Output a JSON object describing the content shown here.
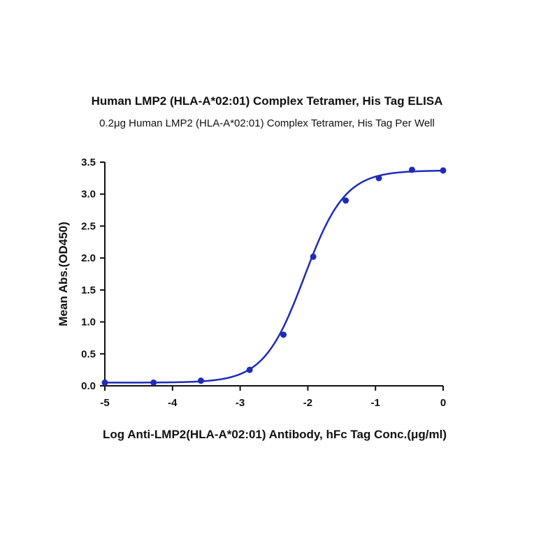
{
  "chart_data": {
    "type": "scatter",
    "title": "Human LMP2 (HLA-A*02:01) Complex Tetramer, His Tag ELISA",
    "subtitle": "0.2μg Human LMP2 (HLA-A*02:01) Complex Tetramer, His Tag Per Well",
    "xlabel": "Log Anti-LMP2(HLA-A*02:01) Antibody, hFc Tag Conc.(μg/ml)",
    "ylabel": "Mean Abs.(OD450)",
    "xlim": [
      -5,
      0
    ],
    "ylim": [
      0,
      3.5
    ],
    "xticks": [
      "-5",
      "-4",
      "-3",
      "-2",
      "-1",
      "0"
    ],
    "yticks": [
      "0.0",
      "0.5",
      "1.0",
      "1.5",
      "2.0",
      "2.5",
      "3.0",
      "3.5"
    ],
    "grid": false,
    "series": [
      {
        "color": "#1f2bb8",
        "points": [
          {
            "x": -5.0,
            "y": 0.05
          },
          {
            "x": -4.28,
            "y": 0.05
          },
          {
            "x": -3.58,
            "y": 0.08
          },
          {
            "x": -2.86,
            "y": 0.25
          },
          {
            "x": -2.36,
            "y": 0.8
          },
          {
            "x": -1.92,
            "y": 2.02
          },
          {
            "x": -1.44,
            "y": 2.9
          },
          {
            "x": -0.95,
            "y": 3.25
          },
          {
            "x": -0.46,
            "y": 3.38
          },
          {
            "x": 0.0,
            "y": 3.37
          }
        ],
        "fit": {
          "model": "4PL",
          "bottom": 0.05,
          "top": 3.37,
          "logEC50": -2.05,
          "hill": 1.45
        }
      }
    ]
  }
}
